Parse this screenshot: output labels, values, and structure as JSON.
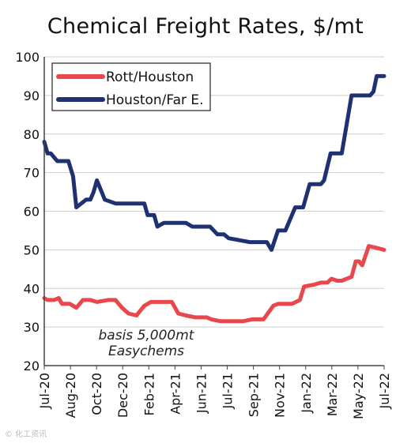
{
  "chart_data": {
    "type": "line",
    "title": "Chemical Freight Rates,  $/mt",
    "xlabel": "",
    "ylabel": "",
    "ylim": [
      20,
      100
    ],
    "yticks": [
      20,
      30,
      40,
      50,
      60,
      70,
      80,
      90,
      100
    ],
    "x_tick_labels": [
      "Jul-20",
      "Aug-20",
      "Oct-20",
      "Dec-20",
      "Feb-21",
      "Apr-21",
      "Jun-21",
      "Jul-21",
      "Sep-21",
      "Nov-21",
      "Jan-22",
      "Mar-22",
      "May-22",
      "Jul-22"
    ],
    "x_range": [
      "2020-07",
      "2022-07"
    ],
    "grid": "y-axis gridlines",
    "legend_position": "top-left",
    "annotation": [
      "basis 5,000mt",
      "Easychems"
    ],
    "series": [
      {
        "name": "Rott/Houston",
        "color": "#e8474c",
        "x": [
          "2020-07-01",
          "2020-07-08",
          "2020-07-22",
          "2020-08-01",
          "2020-08-08",
          "2020-08-25",
          "2020-09-08",
          "2020-09-22",
          "2020-10-08",
          "2020-10-22",
          "2020-11-15",
          "2020-12-01",
          "2020-12-15",
          "2020-12-29",
          "2021-01-15",
          "2021-02-01",
          "2021-02-15",
          "2021-03-01",
          "2021-03-22",
          "2021-04-01",
          "2021-04-15",
          "2021-05-01",
          "2021-05-22",
          "2021-06-15",
          "2021-06-25",
          "2021-07-15",
          "2021-08-15",
          "2021-09-01",
          "2021-09-20",
          "2021-10-05",
          "2021-10-15",
          "2021-11-05",
          "2021-11-15",
          "2021-12-15",
          "2022-01-01",
          "2022-01-10",
          "2022-02-01",
          "2022-02-15",
          "2022-03-01",
          "2022-03-10",
          "2022-03-22",
          "2022-04-01",
          "2022-04-22",
          "2022-05-01",
          "2022-05-08",
          "2022-05-15",
          "2022-05-29",
          "2022-06-15",
          "2022-07-01"
        ],
        "y": [
          37.5,
          37,
          37,
          37.5,
          36,
          36,
          35,
          37,
          37,
          36.5,
          37,
          37,
          35,
          33.5,
          33,
          35.5,
          36.5,
          36.5,
          36.5,
          36.5,
          33.5,
          33,
          32.5,
          32.5,
          32,
          31.5,
          31.5,
          31.5,
          32,
          32,
          32,
          35.5,
          36,
          36,
          37,
          40.5,
          41,
          41.5,
          41.5,
          42.5,
          42,
          42,
          43,
          47,
          47,
          46,
          51,
          50.5,
          50
        ]
      },
      {
        "name": "Houston/Far E.",
        "color": "#1f3170",
        "x": [
          "2020-07-01",
          "2020-07-08",
          "2020-07-15",
          "2020-07-29",
          "2020-08-22",
          "2020-09-01",
          "2020-09-08",
          "2020-09-29",
          "2020-10-08",
          "2020-10-15",
          "2020-10-22",
          "2020-11-08",
          "2020-12-01",
          "2021-01-15",
          "2021-01-22",
          "2021-02-01",
          "2021-02-08",
          "2021-02-22",
          "2021-03-01",
          "2021-03-15",
          "2021-04-15",
          "2021-05-01",
          "2021-05-15",
          "2021-06-01",
          "2021-06-15",
          "2021-06-22",
          "2021-07-08",
          "2021-07-22",
          "2021-08-01",
          "2021-09-15",
          "2021-09-22",
          "2021-10-08",
          "2021-10-22",
          "2021-11-01",
          "2021-11-15",
          "2021-12-01",
          "2021-12-22",
          "2022-01-08",
          "2022-01-22",
          "2022-02-08",
          "2022-02-15",
          "2022-02-22",
          "2022-03-08",
          "2022-03-22",
          "2022-04-01",
          "2022-04-22",
          "2022-05-01",
          "2022-05-22",
          "2022-06-01",
          "2022-06-08",
          "2022-06-15",
          "2022-07-01"
        ],
        "y": [
          78,
          75,
          75,
          73,
          73,
          69,
          61,
          63,
          63,
          65,
          68,
          63,
          62,
          62,
          62,
          62,
          59,
          59,
          56,
          57,
          57,
          57,
          56,
          56,
          56,
          56,
          54,
          54,
          53,
          52,
          52,
          52,
          52,
          50,
          55,
          55,
          61,
          61,
          67,
          67,
          67,
          68,
          75,
          75,
          75,
          90,
          90,
          90,
          90,
          91,
          95,
          95
        ]
      }
    ]
  },
  "watermark": "© 化工资讯"
}
